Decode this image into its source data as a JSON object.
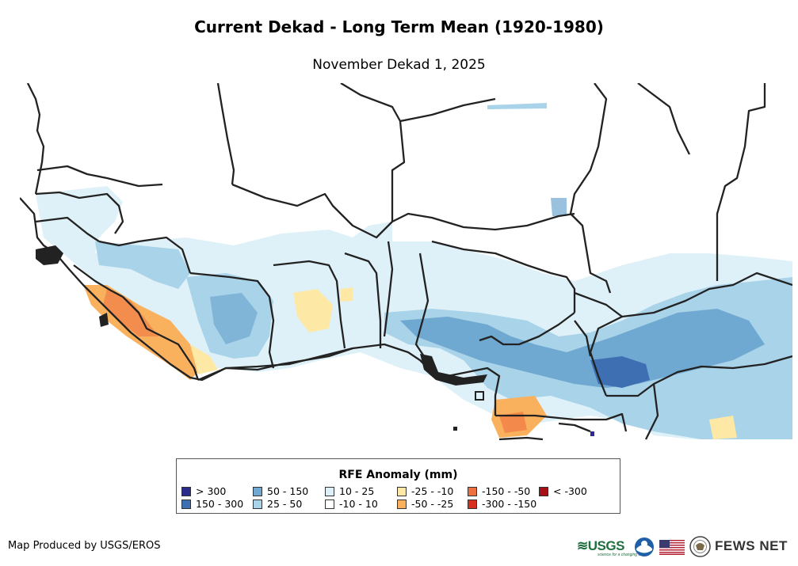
{
  "title": "Current Dekad - Long Term Mean (1920-1980)",
  "subtitle": "November Dekad 1, 2025",
  "legend": {
    "title": "RFE Anomaly (mm)",
    "items": [
      {
        "label": "> 300",
        "color": "#2b2b8c"
      },
      {
        "label": "150 - 300",
        "color": "#3f6fb3"
      },
      {
        "label": "50 - 150",
        "color": "#6fa8d1"
      },
      {
        "label": "25 - 50",
        "color": "#a9d3e8"
      },
      {
        "label": "10 - 25",
        "color": "#dff1f8"
      },
      {
        "label": "-10 - 10",
        "color": "#ffffff"
      },
      {
        "label": "-25 - -10",
        "color": "#fde8a6"
      },
      {
        "label": "-50 - -25",
        "color": "#f9b15e"
      },
      {
        "label": "-150 - -50",
        "color": "#ee7040"
      },
      {
        "label": "-300 - -150",
        "color": "#d7301f"
      },
      {
        "label": "< -300",
        "color": "#a50f15"
      }
    ]
  },
  "credit": "Map Produced by USGS/EROS",
  "logos": {
    "usgs": "≋USGS",
    "usgs_tagline": "science for a changing world",
    "fews": "FEWS NET",
    "icons": [
      "usgs-logo-icon",
      "noaa-logo-icon",
      "us-flag-icon",
      "state-dept-seal-icon"
    ]
  }
}
